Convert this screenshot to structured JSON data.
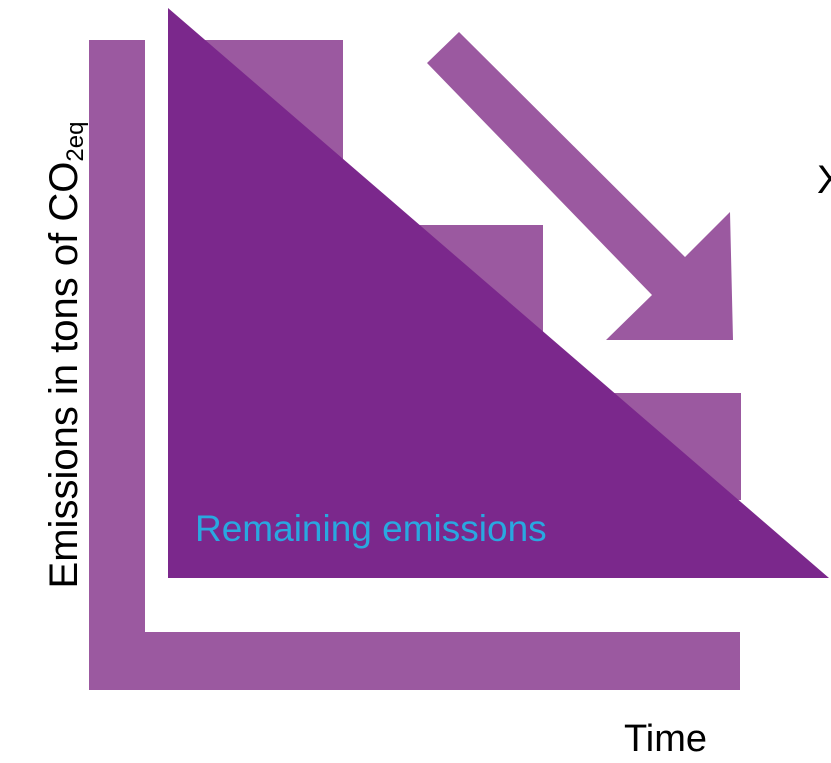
{
  "diagram": {
    "y_axis_label": "Emissions in tons of CO",
    "y_axis_label_subscript": "2eq",
    "x_axis_label": "Time",
    "remaining_label": "Remaining emissions",
    "edge_text": "X"
  },
  "colors": {
    "axis_frame": "#9b59a0",
    "steps": "#9b59a0",
    "triangle": "#7b288c",
    "arrow": "#9b59a0",
    "remaining_text": "#29a8e0",
    "text": "#000000"
  },
  "icons": {
    "arrow": "down-right-arrow-icon"
  }
}
